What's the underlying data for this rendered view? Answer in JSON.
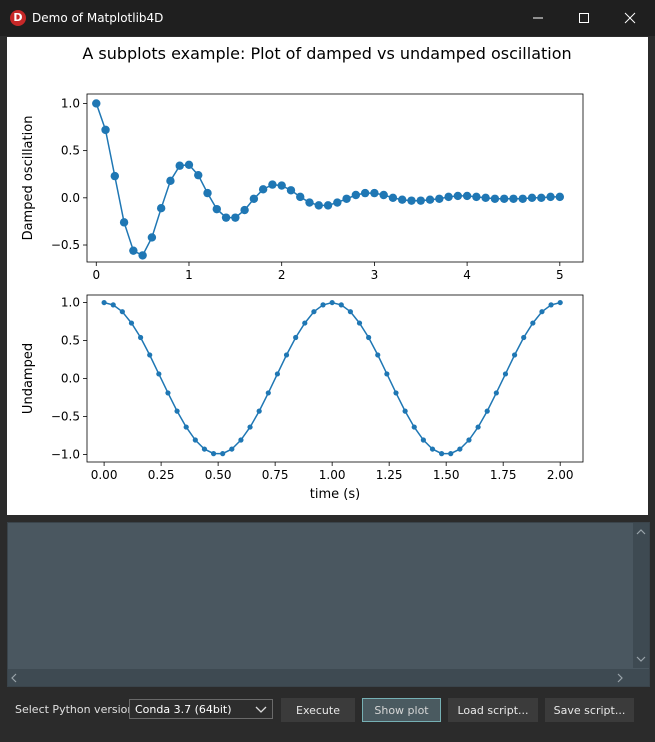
{
  "window": {
    "title": "Demo of Matplotlib4D",
    "icon_letter": "D"
  },
  "figure": {
    "title": "A subplots example: Plot of damped vs undamped oscillation"
  },
  "chart_data": [
    {
      "type": "line",
      "ylabel": "Damped oscillation",
      "xlabel": "",
      "xlim": [
        -0.1,
        5.25
      ],
      "ylim": [
        -0.68,
        1.1
      ],
      "xticks": [
        0,
        1,
        2,
        3,
        4,
        5
      ],
      "xtick_labels": [
        "0",
        "1",
        "2",
        "3",
        "4",
        "5"
      ],
      "yticks": [
        1.0,
        0.5,
        0.0,
        -0.5
      ],
      "ytick_labels": [
        "1.0",
        "0.5",
        "0.0",
        "−0.5"
      ],
      "marker": "circle",
      "color": "#1f77b4",
      "x": [
        0.0,
        0.1,
        0.2,
        0.3,
        0.4,
        0.5,
        0.6,
        0.7,
        0.8,
        0.9,
        1.0,
        1.1,
        1.2,
        1.3,
        1.4,
        1.5,
        1.6,
        1.7,
        1.8,
        1.9,
        2.0,
        2.1,
        2.2,
        2.3,
        2.4,
        2.5,
        2.6,
        2.7,
        2.8,
        2.9,
        3.0,
        3.1,
        3.2,
        3.3,
        3.4,
        3.5,
        3.6,
        3.7,
        3.8,
        3.9,
        4.0,
        4.1,
        4.2,
        4.3,
        4.4,
        4.5,
        4.6,
        4.7,
        4.8,
        4.9,
        5.0
      ],
      "y": [
        1.0,
        0.72,
        0.23,
        -0.26,
        -0.56,
        -0.61,
        -0.42,
        -0.11,
        0.18,
        0.34,
        0.35,
        0.24,
        0.05,
        -0.12,
        -0.21,
        -0.21,
        -0.13,
        -0.01,
        0.09,
        0.14,
        0.13,
        0.08,
        0.01,
        -0.05,
        -0.08,
        -0.08,
        -0.05,
        -0.01,
        0.03,
        0.05,
        0.05,
        0.03,
        0.0,
        -0.02,
        -0.03,
        -0.03,
        -0.02,
        -0.01,
        0.01,
        0.02,
        0.02,
        0.01,
        0.0,
        -0.01,
        -0.01,
        -0.01,
        -0.01,
        0.0,
        0.0,
        0.01,
        0.01
      ]
    },
    {
      "type": "line",
      "ylabel": "Undamped",
      "xlabel": "time (s)",
      "xlim": [
        -0.075,
        2.1
      ],
      "ylim": [
        -1.1,
        1.1
      ],
      "xticks": [
        0.0,
        0.25,
        0.5,
        0.75,
        1.0,
        1.25,
        1.5,
        1.75,
        2.0
      ],
      "xtick_labels": [
        "0.00",
        "0.25",
        "0.50",
        "0.75",
        "1.00",
        "1.25",
        "1.50",
        "1.75",
        "2.00"
      ],
      "yticks": [
        1.0,
        0.5,
        0.0,
        -0.5,
        -1.0
      ],
      "ytick_labels": [
        "1.0",
        "0.5",
        "0.0",
        "−0.5",
        "−1.0"
      ],
      "marker": "small-dot",
      "color": "#1f77b4",
      "x": [
        0.0,
        0.04,
        0.08,
        0.12,
        0.16,
        0.2,
        0.24,
        0.28,
        0.32,
        0.36,
        0.4,
        0.44,
        0.48,
        0.52,
        0.56,
        0.6,
        0.64,
        0.68,
        0.72,
        0.76,
        0.8,
        0.84,
        0.88,
        0.92,
        0.96,
        1.0,
        1.04,
        1.08,
        1.12,
        1.16,
        1.2,
        1.24,
        1.28,
        1.32,
        1.36,
        1.4,
        1.44,
        1.48,
        1.52,
        1.56,
        1.6,
        1.64,
        1.68,
        1.72,
        1.76,
        1.8,
        1.84,
        1.88,
        1.92,
        1.96,
        2.0
      ],
      "y": [
        1.0,
        0.97,
        0.88,
        0.73,
        0.54,
        0.31,
        0.06,
        -0.19,
        -0.43,
        -0.64,
        -0.81,
        -0.93,
        -0.99,
        -0.99,
        -0.93,
        -0.81,
        -0.64,
        -0.43,
        -0.19,
        0.06,
        0.31,
        0.54,
        0.73,
        0.88,
        0.97,
        1.0,
        0.97,
        0.88,
        0.73,
        0.54,
        0.31,
        0.06,
        -0.19,
        -0.43,
        -0.64,
        -0.81,
        -0.93,
        -0.99,
        -0.99,
        -0.93,
        -0.81,
        -0.64,
        -0.43,
        -0.19,
        0.06,
        0.31,
        0.54,
        0.73,
        0.88,
        0.97,
        1.0
      ]
    }
  ],
  "footer": {
    "python_label": "Select Python version :",
    "python_selected": "Conda 3.7 (64bit)",
    "execute_label": "Execute",
    "show_plot_label": "Show plot",
    "load_label": "Load script...",
    "save_label": "Save script..."
  }
}
